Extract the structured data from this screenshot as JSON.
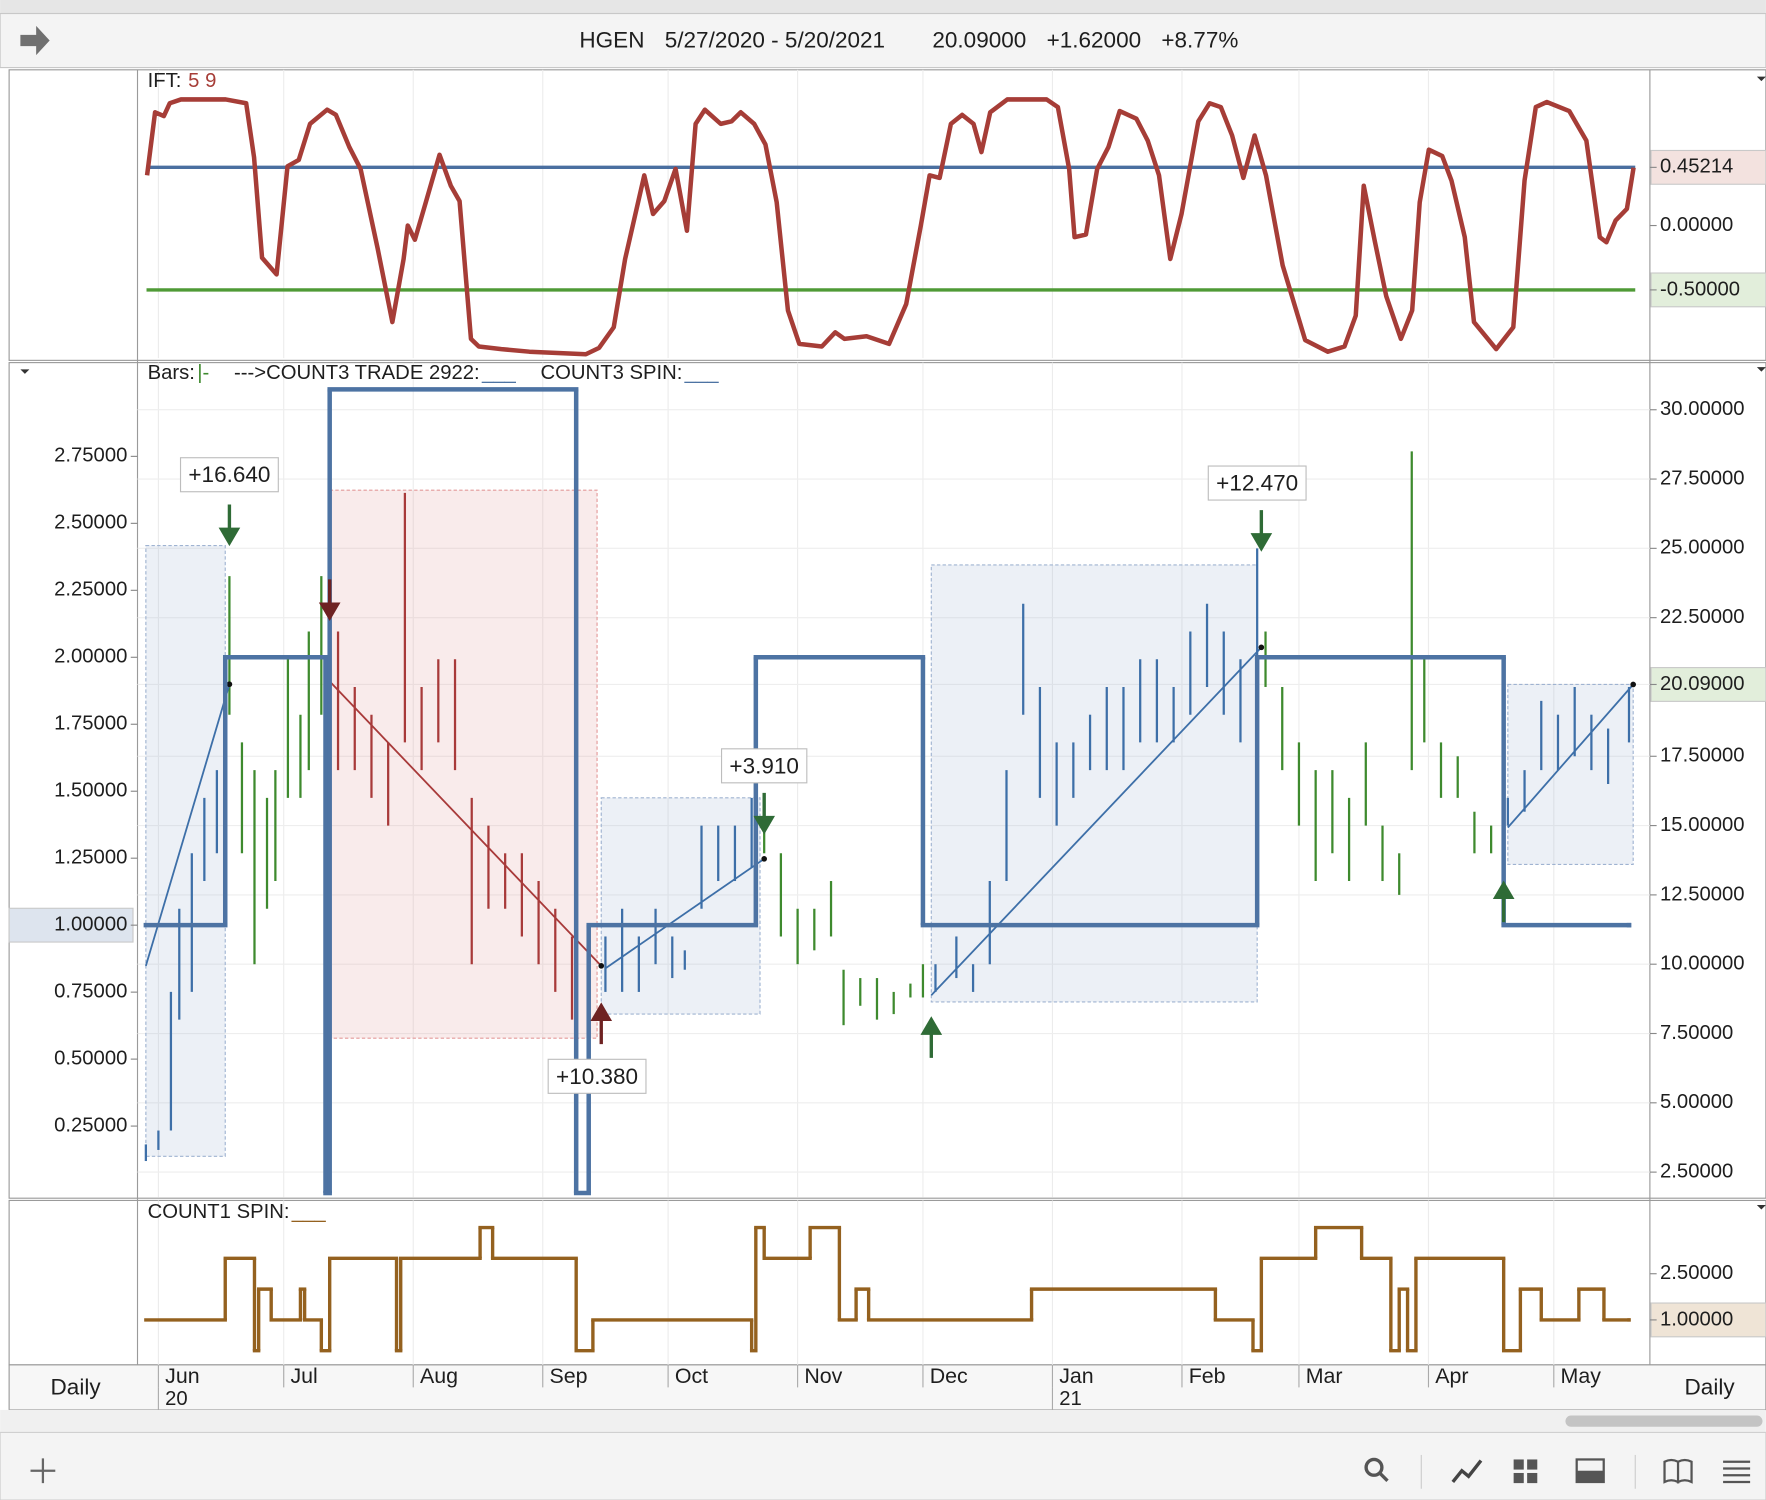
{
  "header": {
    "symbol": "HGEN",
    "range": "5/27/2020 - 5/20/2021",
    "last": "20.09000",
    "change": "+1.62000",
    "percent": "+8.77%",
    "period": "Daily"
  },
  "chart_data": [
    {
      "type": "line",
      "title": "IFT:",
      "params": "5 9",
      "color": "#a63d37",
      "xlim": [
        0,
        362
      ],
      "y2lim": [
        -1.03,
        1.21
      ],
      "y2ticks": [
        {
          "value": 0.45214,
          "label": "0.45214",
          "color": "#f3e2df"
        },
        {
          "value": 0,
          "label": "0.00000"
        },
        {
          "value": -0.5,
          "label": "-0.50000",
          "color": "#e2eedb"
        }
      ],
      "reference_lines": [
        {
          "value": 0.45214,
          "color": "#4a6fa0"
        },
        {
          "value": -0.5,
          "color": "#4f9a36"
        }
      ],
      "x": [
        2.3,
        4.2,
        6.3,
        7.7,
        10.4,
        21.1,
        26.0,
        27.9,
        29.8,
        33.3,
        35.9,
        38.6,
        41.3,
        45.4,
        47.5,
        50.7,
        53.4,
        57.5,
        61.0,
        63.7,
        64.7,
        66.4,
        69.0,
        72.3,
        75.0,
        77.1,
        79.8,
        81.7,
        87.1,
        93.8,
        107.3,
        110.5,
        114.0,
        116.7,
        121.3,
        123.4,
        126.1,
        128.8,
        131.5,
        133.6,
        135.8,
        139.6,
        142.2,
        144.4,
        147.6,
        150.3,
        153.0,
        155.7,
        158.4,
        163.8,
        167.0,
        169.2,
        174.5,
        179.9,
        184.0,
        187.5,
        189.6,
        192.0,
        194.7,
        197.4,
        200.1,
        202.0,
        204.1,
        208.2,
        217.6,
        220.3,
        223.0,
        224.3,
        227.0,
        229.7,
        232.4,
        235.1,
        239.1,
        241.8,
        244.5,
        247.2,
        249.9,
        253.9,
        256.6,
        259.3,
        262.0,
        264.7,
        267.4,
        270.1,
        274.1,
        279.5,
        284.9,
        288.9,
        291.6,
        293.5,
        296.2,
        298.9,
        302.4,
        305.1,
        306.9,
        309.1,
        312.3,
        314.5,
        317.7,
        319.9,
        325.2,
        329.3,
        332.0,
        334.7,
        337.3,
        342.7,
        346.8,
        350.0,
        351.6,
        353.8,
        356.5,
        358.1
      ],
      "values": [
        0.39,
        0.88,
        0.85,
        0.95,
        0.98,
        0.98,
        0.95,
        0.53,
        -0.25,
        -0.38,
        0.46,
        0.51,
        0.79,
        0.9,
        0.86,
        0.61,
        0.44,
        -0.18,
        -0.75,
        -0.26,
        0.0,
        -0.11,
        0.18,
        0.55,
        0.31,
        0.19,
        -0.88,
        -0.94,
        -0.96,
        -0.98,
        -1.0,
        -0.95,
        -0.79,
        -0.26,
        0.39,
        0.09,
        0.19,
        0.44,
        -0.04,
        0.79,
        0.9,
        0.79,
        0.81,
        0.88,
        0.79,
        0.63,
        0.18,
        -0.66,
        -0.92,
        -0.94,
        -0.83,
        -0.88,
        -0.86,
        -0.92,
        -0.61,
        0.0,
        0.39,
        0.37,
        0.79,
        0.86,
        0.79,
        0.57,
        0.88,
        0.98,
        0.98,
        0.92,
        0.44,
        -0.09,
        -0.07,
        0.44,
        0.61,
        0.89,
        0.83,
        0.66,
        0.39,
        -0.26,
        0.09,
        0.81,
        0.95,
        0.92,
        0.7,
        0.37,
        0.7,
        0.39,
        -0.31,
        -0.89,
        -0.98,
        -0.94,
        -0.7,
        0.31,
        -0.13,
        -0.55,
        -0.88,
        -0.66,
        0.18,
        0.59,
        0.54,
        0.35,
        -0.09,
        -0.75,
        -0.96,
        -0.79,
        0.35,
        0.92,
        0.96,
        0.89,
        0.66,
        -0.09,
        -0.13,
        0.04,
        0.13,
        0.45
      ]
    },
    {
      "type": "range",
      "legend": [
        {
          "text": "Bars:",
          "marker": "|-",
          "color": "#3e8a2e"
        },
        {
          "text": "--->COUNT3 TRADE 2922:",
          "marker": "___",
          "color": "#4d73a3"
        },
        {
          "text": "COUNT3 SPIN:",
          "marker": "___",
          "color": "#4d73a3"
        }
      ],
      "grid": true,
      "xlim": [
        0,
        362
      ],
      "ylim": [
        -0.015,
        3.1
      ],
      "yticks": [
        {
          "value": 0.25,
          "label": "0.25000"
        },
        {
          "value": 0.5,
          "label": "0.50000"
        },
        {
          "value": 0.75,
          "label": "0.75000"
        },
        {
          "value": 1,
          "label": "1.00000",
          "color": "#dde4ee"
        },
        {
          "value": 1.25,
          "label": "1.25000"
        },
        {
          "value": 1.5,
          "label": "1.50000"
        },
        {
          "value": 1.75,
          "label": "1.75000"
        },
        {
          "value": 2,
          "label": "2.00000"
        },
        {
          "value": 2.25,
          "label": "2.25000"
        },
        {
          "value": 2.5,
          "label": "2.50000"
        },
        {
          "value": 2.75,
          "label": "2.75000"
        }
      ],
      "y2lim": [
        1.6,
        31.7
      ],
      "y2ticks": [
        {
          "value": 2.5,
          "label": "2.50000"
        },
        {
          "value": 5,
          "label": "5.00000"
        },
        {
          "value": 7.5,
          "label": "7.50000"
        },
        {
          "value": 10,
          "label": "10.00000"
        },
        {
          "value": 12.5,
          "label": "12.50000"
        },
        {
          "value": 15,
          "label": "15.00000"
        },
        {
          "value": 17.5,
          "label": "17.50000"
        },
        {
          "value": 20.09,
          "label": "20.09000",
          "color": "#e2eedb"
        },
        {
          "value": 22.5,
          "label": "22.50000"
        },
        {
          "value": 25,
          "label": "25.00000"
        },
        {
          "value": 27.5,
          "label": "27.50000"
        },
        {
          "value": 30,
          "label": "30.00000"
        }
      ],
      "series": [
        {
          "color": "#4d73a3",
          "x": [
            2,
            21,
            45,
            46,
            105,
            108,
            148,
            188,
            268,
            327,
            357
          ],
          "values": [
            1,
            2,
            0,
            3,
            0,
            1,
            2,
            1,
            2,
            1,
            1
          ]
        }
      ],
      "bar_groups": [
        {
          "color": "#3d6fa8",
          "x": [
            2,
            5,
            8,
            10,
            13,
            16,
            19,
            21
          ],
          "high": [
            3.5,
            4,
            9,
            12,
            14,
            16,
            17,
            21
          ],
          "low": [
            2.9,
            3.3,
            4,
            8,
            9,
            13,
            14,
            16
          ]
        },
        {
          "color": "#3e8a2e",
          "x": [
            22,
            25,
            28,
            31,
            33,
            36,
            39,
            41,
            44
          ],
          "high": [
            24,
            18,
            17,
            16,
            17,
            21,
            19,
            22,
            24
          ],
          "low": [
            19,
            14,
            10,
            12,
            13,
            16,
            16,
            17,
            19
          ]
        },
        {
          "color": "#a83a3a",
          "x": [
            48,
            52,
            56,
            60,
            64,
            68,
            72,
            76,
            80,
            84,
            88,
            92,
            96,
            100,
            104,
            108
          ],
          "high": [
            22,
            20,
            19,
            18,
            27,
            20,
            21,
            21,
            16,
            15,
            14,
            14,
            13,
            12,
            11,
            9
          ],
          "low": [
            17,
            17,
            16,
            15,
            18,
            17,
            18,
            17,
            10,
            12,
            12,
            11,
            10,
            9,
            8,
            7.5
          ]
        },
        {
          "color": "#3d6fa8",
          "x": [
            112,
            116,
            120,
            124,
            128,
            131,
            135,
            139,
            143,
            147
          ],
          "high": [
            11,
            12,
            11,
            12,
            11,
            10.5,
            15,
            15,
            15,
            16
          ],
          "low": [
            9,
            9,
            9,
            10,
            9.5,
            9.8,
            12,
            13,
            13,
            13.5
          ]
        },
        {
          "color": "#3e8a2e",
          "x": [
            150,
            154,
            158,
            162,
            166,
            169,
            173,
            177,
            181,
            185,
            188
          ],
          "high": [
            15,
            14,
            12,
            12,
            13,
            9.8,
            9.5,
            9.5,
            9,
            9.3,
            10
          ],
          "low": [
            14,
            11,
            10,
            10.5,
            11,
            7.8,
            8.5,
            8,
            8.2,
            8.8,
            8.8
          ]
        },
        {
          "color": "#3d6fa8",
          "x": [
            191,
            196,
            200,
            204,
            208,
            212,
            216,
            220,
            224,
            228,
            232,
            236,
            240,
            244,
            248,
            252,
            256,
            260,
            264,
            268
          ],
          "high": [
            10,
            11,
            10,
            13,
            17,
            23,
            20,
            18,
            18,
            19,
            20,
            20,
            21,
            21,
            20,
            22,
            23,
            22,
            21,
            25
          ],
          "low": [
            9,
            9.5,
            9,
            10,
            13,
            19,
            16,
            15,
            16,
            17,
            17,
            17,
            18,
            18,
            18,
            19,
            20,
            19,
            18,
            21
          ]
        },
        {
          "color": "#3e8a2e",
          "x": [
            270,
            274,
            278,
            282,
            286,
            290,
            294,
            298,
            302,
            305,
            308,
            312,
            316,
            320,
            324,
            327
          ],
          "high": [
            22,
            20,
            18,
            17,
            17,
            16,
            18,
            15,
            14,
            28.5,
            21,
            18,
            17.5,
            15.5,
            15,
            13.8
          ],
          "low": [
            20,
            17,
            15,
            13,
            14,
            13,
            15,
            13,
            12.5,
            17,
            18,
            16,
            16,
            14,
            14,
            13
          ]
        },
        {
          "color": "#3d6fa8",
          "x": [
            328,
            332,
            336,
            340,
            344,
            348,
            352,
            357
          ],
          "high": [
            16,
            17,
            19.5,
            19,
            20,
            19,
            18.5,
            20
          ],
          "low": [
            15,
            15.5,
            17,
            17,
            17.5,
            17,
            16.5,
            18
          ]
        }
      ],
      "trade_boxes": [
        {
          "x0": 2,
          "x1": 21,
          "low": 3.07,
          "high": 25.1,
          "color": "#9fb3d1"
        },
        {
          "x0": 46,
          "x1": 110,
          "low": 7.33,
          "high": 27.1,
          "color": "#e39a9a"
        },
        {
          "x0": 111,
          "x1": 149,
          "low": 8.2,
          "high": 16.0,
          "color": "#9fb3d1"
        },
        {
          "x0": 190,
          "x1": 268,
          "low": 8.64,
          "high": 24.4,
          "color": "#9fb3d1"
        },
        {
          "x0": 328,
          "x1": 358,
          "low": 13.6,
          "high": 20.09,
          "color": "#9fb3d1"
        }
      ],
      "trend_lines": [
        {
          "x0": 2,
          "y0": 9.94,
          "x1": 22,
          "y1": 20.1,
          "color": "#3d6fa8"
        },
        {
          "x0": 46,
          "y0": 20.2,
          "x1": 111,
          "y1": 9.94,
          "color": "#a83a3a"
        },
        {
          "x0": 112,
          "y0": 9.85,
          "x1": 150,
          "y1": 13.8,
          "color": "#3d6fa8"
        },
        {
          "x0": 190,
          "y0": 8.88,
          "x1": 269,
          "y1": 21.43,
          "color": "#3d6fa8"
        },
        {
          "x0": 328,
          "y0": 14.93,
          "x1": 358,
          "y1": 20.09,
          "color": "#3d6fa8"
        }
      ],
      "annotations": [
        {
          "text": "+16.640",
          "x": 22,
          "y": 27.6,
          "color": "#3e8a2e"
        },
        {
          "text": "+10.380",
          "x": 110,
          "y": 5.9,
          "color": "#a83a3a"
        },
        {
          "text": "+3.910",
          "x": 150,
          "y": 17.1,
          "color": "#3e8a2e"
        },
        {
          "text": "+12.470",
          "x": 268,
          "y": 27.3,
          "color": "#3e8a2e"
        }
      ],
      "arrows": [
        {
          "x": 22,
          "y": 25.2,
          "direction": "down",
          "color": "#2f6b36"
        },
        {
          "x": 46,
          "y": 22.5,
          "direction": "down",
          "color": "#6e2222"
        },
        {
          "x": 111,
          "y": 8.5,
          "direction": "up",
          "color": "#6e2222"
        },
        {
          "x": 150,
          "y": 14.8,
          "direction": "down",
          "color": "#2f6b36"
        },
        {
          "x": 190,
          "y": 8.0,
          "direction": "up",
          "color": "#2f6b36"
        },
        {
          "x": 269,
          "y": 25.0,
          "direction": "down",
          "color": "#2f6b36"
        },
        {
          "x": 327,
          "y": 12.9,
          "direction": "up",
          "color": "#2f6b36"
        }
      ]
    },
    {
      "type": "step",
      "title": "COUNT1 SPIN:",
      "marker": "___",
      "color": "#94611f",
      "xlim": [
        0,
        362
      ],
      "ylim": [
        -0.46,
        4.88
      ],
      "y2ticks": [
        {
          "value": 2.5,
          "label": "2.50000"
        },
        {
          "value": 1,
          "label": "1.00000",
          "color": "#efe4d6"
        }
      ],
      "x": [
        2,
        21,
        28,
        29,
        32,
        39,
        40,
        44,
        46,
        62,
        63,
        82,
        85,
        105,
        109,
        147,
        148,
        150,
        161,
        168,
        172,
        175,
        214,
        258,
        267,
        269,
        282,
        293,
        300,
        302,
        304,
        306,
        327,
        331,
        336,
        345,
        351,
        357
      ],
      "values": [
        1,
        3,
        0,
        2,
        1,
        2,
        1,
        0,
        3,
        0,
        3,
        4,
        3,
        0,
        1,
        0,
        4,
        3,
        4,
        1,
        2,
        1,
        2,
        1,
        0,
        3,
        4,
        3,
        0,
        2,
        0,
        3,
        0,
        2,
        1,
        2,
        1,
        1
      ],
      "xticks": [
        {
          "value": 5,
          "label": "Jun"
        },
        {
          "value": 35,
          "label": "Jul"
        },
        {
          "value": 66,
          "label": "Aug"
        },
        {
          "value": 97,
          "label": "Sep"
        },
        {
          "value": 127,
          "label": "Oct"
        },
        {
          "value": 158,
          "label": "Nov"
        },
        {
          "value": 188,
          "label": "Dec"
        },
        {
          "value": 219,
          "label": "Jan"
        },
        {
          "value": 250,
          "label": "Feb"
        },
        {
          "value": 278,
          "label": "Mar"
        },
        {
          "value": 309,
          "label": "Apr"
        },
        {
          "value": 339,
          "label": "May"
        }
      ],
      "year_labels": [
        {
          "value": 5,
          "label": "20"
        },
        {
          "value": 219,
          "label": "21"
        }
      ]
    }
  ]
}
